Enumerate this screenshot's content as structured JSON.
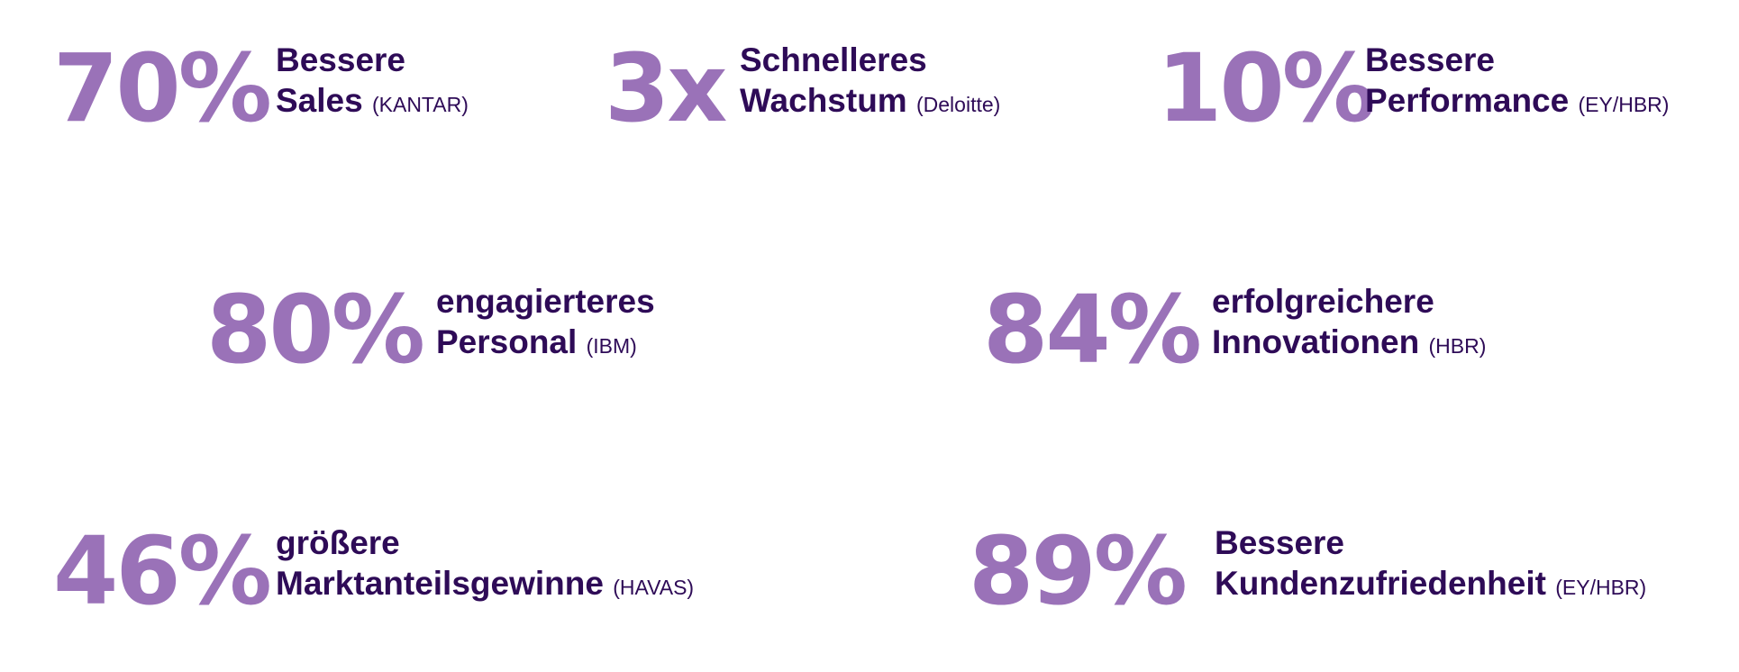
{
  "stats": [
    {
      "number": "70%",
      "line1": "Bessere",
      "line2": "Sales",
      "source": "(KANTAR)"
    },
    {
      "number": "3x",
      "line1": "Schnelleres",
      "line2": "Wachstum",
      "source": "(Deloitte)"
    },
    {
      "number": "10%",
      "line1": "Bessere",
      "line2": "Performance",
      "source": "(EY/HBR)"
    },
    {
      "number": "80%",
      "line1": "engagierteres",
      "line2": "Personal",
      "source": "(IBM)"
    },
    {
      "number": "84%",
      "line1": "erfolgreichere",
      "line2": "Innovationen",
      "source": "(HBR)"
    },
    {
      "number": "46%",
      "line1": "größere",
      "line2": "Marktanteilsgewinne",
      "source": "(HAVAS)"
    },
    {
      "number": "89%",
      "line1": "Bessere",
      "line2": "Kundenzufriedenheit",
      "source": "(EY/HBR)"
    }
  ]
}
